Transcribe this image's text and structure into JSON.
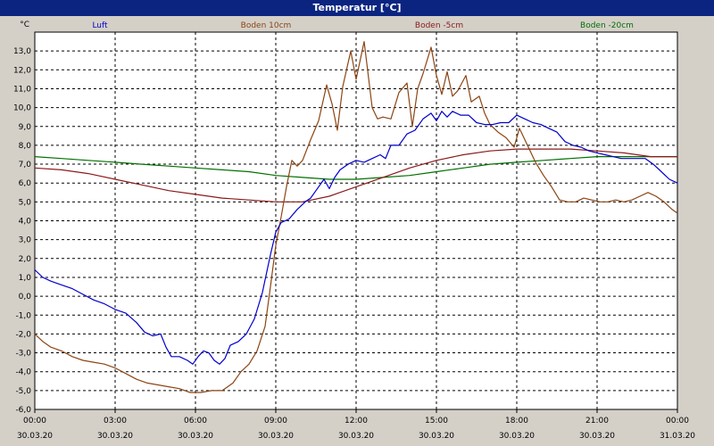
{
  "window": {
    "title": "Temperatur [°C]"
  },
  "colors": {
    "titlebar": "#0a2480",
    "background": "#d4d0c8",
    "plot_bg": "#ffffff",
    "grid": "#000000"
  },
  "chart_data": {
    "type": "line",
    "title": "Temperatur [°C]",
    "ylabel": "°C",
    "ylim": [
      -6,
      14
    ],
    "xlim": [
      0,
      24
    ],
    "grid": true,
    "legend_position": "top",
    "y_ticks": [
      "13,0",
      "12,0",
      "11,0",
      "10,0",
      "9,0",
      "8,0",
      "7,0",
      "6,0",
      "5,0",
      "4,0",
      "3,0",
      "2,0",
      "1,0",
      "0,0",
      "-1,0",
      "-2,0",
      "-3,0",
      "-4,0",
      "-5,0",
      "-6,0"
    ],
    "x_ticks": [
      {
        "time": "00:00",
        "date": "30.03.20"
      },
      {
        "time": "03:00",
        "date": "30.03.20"
      },
      {
        "time": "06:00",
        "date": "30.03.20"
      },
      {
        "time": "09:00",
        "date": "30.03.20"
      },
      {
        "time": "12:00",
        "date": "30.03.20"
      },
      {
        "time": "15:00",
        "date": "30.03.20"
      },
      {
        "time": "18:00",
        "date": "30.03.20"
      },
      {
        "time": "21:00",
        "date": "30.03.20"
      },
      {
        "time": "00:00",
        "date": "31.03.20"
      }
    ],
    "series": [
      {
        "name": "Luft",
        "color": "#0000cc",
        "points": [
          [
            0,
            1.4
          ],
          [
            0.3,
            1.0
          ],
          [
            0.6,
            0.8
          ],
          [
            1.0,
            0.6
          ],
          [
            1.4,
            0.4
          ],
          [
            1.8,
            0.1
          ],
          [
            2.2,
            -0.2
          ],
          [
            2.6,
            -0.4
          ],
          [
            3.0,
            -0.7
          ],
          [
            3.4,
            -0.9
          ],
          [
            3.8,
            -1.4
          ],
          [
            4.1,
            -1.9
          ],
          [
            4.4,
            -2.1
          ],
          [
            4.7,
            -2.0
          ],
          [
            4.9,
            -2.7
          ],
          [
            5.1,
            -3.2
          ],
          [
            5.4,
            -3.2
          ],
          [
            5.7,
            -3.4
          ],
          [
            5.9,
            -3.6
          ],
          [
            6.1,
            -3.2
          ],
          [
            6.3,
            -2.9
          ],
          [
            6.5,
            -3.0
          ],
          [
            6.7,
            -3.4
          ],
          [
            6.9,
            -3.6
          ],
          [
            7.1,
            -3.3
          ],
          [
            7.3,
            -2.6
          ],
          [
            7.6,
            -2.4
          ],
          [
            7.9,
            -2.0
          ],
          [
            8.2,
            -1.2
          ],
          [
            8.5,
            0.2
          ],
          [
            8.8,
            2.2
          ],
          [
            9.0,
            3.4
          ],
          [
            9.2,
            3.9
          ],
          [
            9.5,
            4.1
          ],
          [
            9.8,
            4.6
          ],
          [
            10.1,
            5.0
          ],
          [
            10.3,
            5.2
          ],
          [
            10.5,
            5.6
          ],
          [
            10.8,
            6.2
          ],
          [
            11.0,
            5.7
          ],
          [
            11.2,
            6.3
          ],
          [
            11.4,
            6.7
          ],
          [
            11.7,
            7.0
          ],
          [
            12.0,
            7.2
          ],
          [
            12.3,
            7.1
          ],
          [
            12.6,
            7.3
          ],
          [
            12.9,
            7.5
          ],
          [
            13.1,
            7.3
          ],
          [
            13.3,
            8.0
          ],
          [
            13.6,
            8.0
          ],
          [
            13.9,
            8.6
          ],
          [
            14.2,
            8.8
          ],
          [
            14.5,
            9.4
          ],
          [
            14.8,
            9.7
          ],
          [
            15.0,
            9.3
          ],
          [
            15.2,
            9.8
          ],
          [
            15.4,
            9.5
          ],
          [
            15.6,
            9.8
          ],
          [
            15.9,
            9.6
          ],
          [
            16.2,
            9.6
          ],
          [
            16.5,
            9.2
          ],
          [
            16.8,
            9.1
          ],
          [
            17.1,
            9.1
          ],
          [
            17.4,
            9.2
          ],
          [
            17.7,
            9.2
          ],
          [
            18.0,
            9.6
          ],
          [
            18.3,
            9.4
          ],
          [
            18.6,
            9.2
          ],
          [
            18.9,
            9.1
          ],
          [
            19.2,
            8.9
          ],
          [
            19.5,
            8.7
          ],
          [
            19.8,
            8.2
          ],
          [
            20.1,
            8.0
          ],
          [
            20.4,
            7.9
          ],
          [
            20.7,
            7.7
          ],
          [
            21.0,
            7.6
          ],
          [
            21.3,
            7.5
          ],
          [
            21.6,
            7.4
          ],
          [
            21.9,
            7.3
          ],
          [
            22.2,
            7.3
          ],
          [
            22.5,
            7.3
          ],
          [
            22.8,
            7.3
          ],
          [
            23.1,
            7.0
          ],
          [
            23.4,
            6.6
          ],
          [
            23.7,
            6.2
          ],
          [
            24,
            6.0
          ]
        ]
      },
      {
        "name": "Boden 10cm",
        "color": "#8b4513",
        "points": [
          [
            0,
            -2.0
          ],
          [
            0.3,
            -2.4
          ],
          [
            0.6,
            -2.7
          ],
          [
            1.0,
            -2.9
          ],
          [
            1.4,
            -3.2
          ],
          [
            1.8,
            -3.4
          ],
          [
            2.2,
            -3.5
          ],
          [
            2.6,
            -3.6
          ],
          [
            3.0,
            -3.8
          ],
          [
            3.4,
            -4.1
          ],
          [
            3.8,
            -4.4
          ],
          [
            4.2,
            -4.6
          ],
          [
            4.6,
            -4.7
          ],
          [
            5.0,
            -4.8
          ],
          [
            5.4,
            -4.9
          ],
          [
            5.8,
            -5.1
          ],
          [
            6.2,
            -5.1
          ],
          [
            6.6,
            -5.0
          ],
          [
            7.0,
            -5.0
          ],
          [
            7.4,
            -4.6
          ],
          [
            7.7,
            -4.0
          ],
          [
            8.0,
            -3.6
          ],
          [
            8.3,
            -2.9
          ],
          [
            8.6,
            -1.6
          ],
          [
            8.8,
            0.5
          ],
          [
            9.0,
            2.7
          ],
          [
            9.2,
            4.2
          ],
          [
            9.4,
            5.8
          ],
          [
            9.6,
            7.2
          ],
          [
            9.8,
            6.9
          ],
          [
            10.0,
            7.2
          ],
          [
            10.3,
            8.3
          ],
          [
            10.6,
            9.3
          ],
          [
            10.9,
            11.2
          ],
          [
            11.1,
            10.2
          ],
          [
            11.3,
            8.8
          ],
          [
            11.5,
            11.1
          ],
          [
            11.8,
            13.0
          ],
          [
            12.0,
            11.5
          ],
          [
            12.3,
            13.5
          ],
          [
            12.6,
            10.0
          ],
          [
            12.8,
            9.4
          ],
          [
            13.0,
            9.5
          ],
          [
            13.3,
            9.4
          ],
          [
            13.6,
            10.8
          ],
          [
            13.9,
            11.3
          ],
          [
            14.1,
            9.0
          ],
          [
            14.3,
            11.0
          ],
          [
            14.5,
            11.8
          ],
          [
            14.8,
            13.2
          ],
          [
            15.0,
            11.7
          ],
          [
            15.2,
            10.7
          ],
          [
            15.4,
            11.9
          ],
          [
            15.6,
            10.6
          ],
          [
            15.8,
            10.9
          ],
          [
            16.1,
            11.7
          ],
          [
            16.3,
            10.3
          ],
          [
            16.6,
            10.6
          ],
          [
            16.8,
            9.7
          ],
          [
            17.0,
            9.1
          ],
          [
            17.3,
            8.7
          ],
          [
            17.6,
            8.4
          ],
          [
            17.9,
            7.9
          ],
          [
            18.1,
            8.9
          ],
          [
            18.4,
            8.0
          ],
          [
            18.7,
            7.1
          ],
          [
            19.0,
            6.4
          ],
          [
            19.3,
            5.8
          ],
          [
            19.6,
            5.1
          ],
          [
            19.9,
            5.0
          ],
          [
            20.2,
            5.0
          ],
          [
            20.5,
            5.2
          ],
          [
            20.8,
            5.1
          ],
          [
            21.1,
            5.0
          ],
          [
            21.4,
            5.0
          ],
          [
            21.7,
            5.1
          ],
          [
            22.0,
            5.0
          ],
          [
            22.3,
            5.1
          ],
          [
            22.6,
            5.3
          ],
          [
            22.9,
            5.5
          ],
          [
            23.2,
            5.3
          ],
          [
            23.5,
            5.0
          ],
          [
            23.8,
            4.6
          ],
          [
            24,
            4.4
          ]
        ]
      },
      {
        "name": "Boden -5cm",
        "color": "#8b1a1a",
        "points": [
          [
            0,
            6.8
          ],
          [
            1.0,
            6.7
          ],
          [
            2.0,
            6.5
          ],
          [
            3.0,
            6.2
          ],
          [
            4.0,
            5.9
          ],
          [
            5.0,
            5.6
          ],
          [
            6.0,
            5.4
          ],
          [
            7.0,
            5.2
          ],
          [
            8.0,
            5.1
          ],
          [
            9.0,
            5.0
          ],
          [
            10.0,
            5.0
          ],
          [
            11.0,
            5.3
          ],
          [
            12.0,
            5.8
          ],
          [
            13.0,
            6.3
          ],
          [
            14.0,
            6.8
          ],
          [
            15.0,
            7.2
          ],
          [
            16.0,
            7.5
          ],
          [
            17.0,
            7.7
          ],
          [
            18.0,
            7.8
          ],
          [
            19.0,
            7.8
          ],
          [
            20.0,
            7.8
          ],
          [
            21.0,
            7.7
          ],
          [
            22.0,
            7.6
          ],
          [
            23.0,
            7.4
          ],
          [
            24,
            7.4
          ]
        ]
      },
      {
        "name": "Boden -20cm",
        "color": "#007000",
        "points": [
          [
            0,
            7.4
          ],
          [
            1.0,
            7.3
          ],
          [
            2.0,
            7.2
          ],
          [
            3.0,
            7.1
          ],
          [
            4.0,
            7.0
          ],
          [
            5.0,
            6.9
          ],
          [
            6.0,
            6.8
          ],
          [
            7.0,
            6.7
          ],
          [
            8.0,
            6.6
          ],
          [
            9.0,
            6.4
          ],
          [
            10.0,
            6.3
          ],
          [
            11.0,
            6.2
          ],
          [
            12.0,
            6.2
          ],
          [
            13.0,
            6.3
          ],
          [
            14.0,
            6.4
          ],
          [
            15.0,
            6.6
          ],
          [
            16.0,
            6.8
          ],
          [
            17.0,
            7.0
          ],
          [
            18.0,
            7.1
          ],
          [
            19.0,
            7.2
          ],
          [
            20.0,
            7.3
          ],
          [
            21.0,
            7.4
          ],
          [
            22.0,
            7.4
          ],
          [
            23.0,
            7.4
          ],
          [
            24,
            7.4
          ]
        ]
      }
    ]
  }
}
